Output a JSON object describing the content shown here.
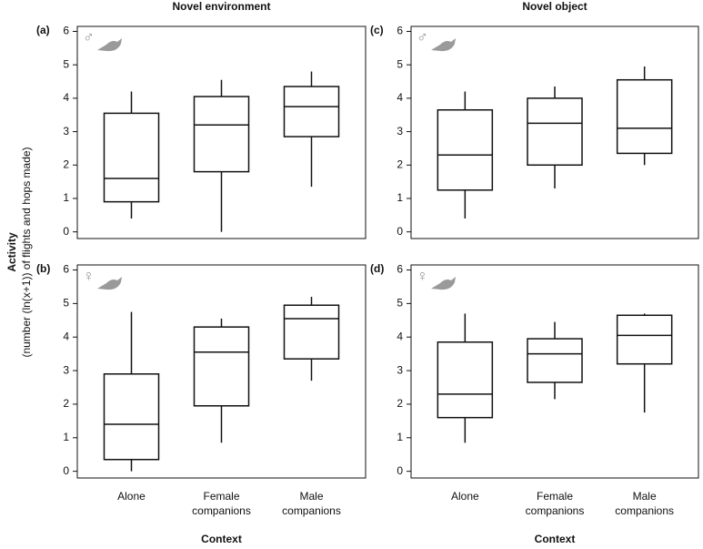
{
  "ylabel": {
    "title": "Activity",
    "subtitle": "(number (ln(x+1)) of flights and hops made)"
  },
  "chart_data": [
    {
      "type": "box",
      "title": "Novel environment",
      "panel": "(a)",
      "sex": "♂",
      "ylim": [
        -0.2,
        6.15
      ],
      "yticks": [
        0,
        1,
        2,
        3,
        4,
        5,
        6
      ],
      "boxes": [
        {
          "min": 0.4,
          "q1": 0.9,
          "median": 1.6,
          "q3": 3.55,
          "max": 4.2
        },
        {
          "min": 0,
          "q1": 1.8,
          "median": 3.2,
          "q3": 4.05,
          "max": 4.55
        },
        {
          "min": 1.35,
          "q1": 2.85,
          "median": 3.75,
          "q3": 4.35,
          "max": 4.8
        }
      ]
    },
    {
      "type": "box",
      "panel": "(b)",
      "sex": "♀",
      "xlabel": "Context",
      "categories": [
        "Alone",
        "Female companions",
        "Male companions"
      ],
      "ylim": [
        -0.2,
        6.15
      ],
      "yticks": [
        0,
        1,
        2,
        3,
        4,
        5,
        6
      ],
      "boxes": [
        {
          "min": 0,
          "q1": 0.35,
          "median": 1.4,
          "q3": 2.9,
          "max": 4.75
        },
        {
          "min": 0.85,
          "q1": 1.95,
          "median": 3.55,
          "q3": 4.3,
          "max": 4.55
        },
        {
          "min": 2.7,
          "q1": 3.35,
          "median": 4.55,
          "q3": 4.95,
          "max": 5.2
        }
      ]
    },
    {
      "type": "box",
      "title": "Novel object",
      "panel": "(c)",
      "sex": "♂",
      "ylim": [
        -0.2,
        6.15
      ],
      "yticks": [
        0,
        1,
        2,
        3,
        4,
        5,
        6
      ],
      "boxes": [
        {
          "min": 0.4,
          "q1": 1.25,
          "median": 2.3,
          "q3": 3.65,
          "max": 4.2
        },
        {
          "min": 1.3,
          "q1": 2.0,
          "median": 3.25,
          "q3": 4.0,
          "max": 4.35
        },
        {
          "min": 2.0,
          "q1": 2.35,
          "median": 3.1,
          "q3": 4.55,
          "max": 4.95
        }
      ]
    },
    {
      "type": "box",
      "panel": "(d)",
      "sex": "♀",
      "xlabel": "Context",
      "categories": [
        "Alone",
        "Female companions",
        "Male companions"
      ],
      "ylim": [
        -0.2,
        6.15
      ],
      "yticks": [
        0,
        1,
        2,
        3,
        4,
        5,
        6
      ],
      "boxes": [
        {
          "min": 0.85,
          "q1": 1.6,
          "median": 2.3,
          "q3": 3.85,
          "max": 4.7
        },
        {
          "min": 2.15,
          "q1": 2.65,
          "median": 3.5,
          "q3": 3.95,
          "max": 4.45
        },
        {
          "min": 1.75,
          "q1": 3.2,
          "median": 4.05,
          "q3": 4.65,
          "max": 4.7
        }
      ]
    }
  ]
}
